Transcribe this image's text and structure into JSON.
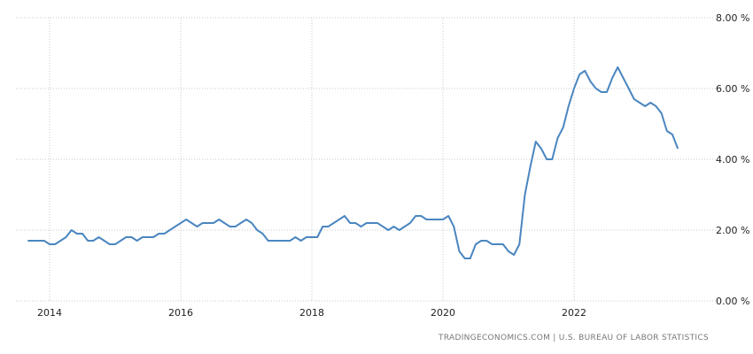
{
  "chart_data": {
    "type": "line",
    "title": "",
    "xlabel": "",
    "ylabel": "",
    "ylim": [
      0,
      8
    ],
    "y_ticks": [
      "0.00 %",
      "2.00 %",
      "4.00 %",
      "6.00 %",
      "8.00 %"
    ],
    "y_tick_values": [
      0,
      2,
      4,
      6,
      8
    ],
    "x_ticks": [
      "2014",
      "2016",
      "2018",
      "2020",
      "2022"
    ],
    "x_start": "2013-09",
    "x_frequency": "monthly",
    "grid": true,
    "line_color": "#4a86c0",
    "series": [
      {
        "values": [
          1.7,
          1.7,
          1.7,
          1.7,
          1.6,
          1.6,
          1.7,
          1.8,
          2.0,
          1.9,
          1.9,
          1.7,
          1.7,
          1.8,
          1.7,
          1.6,
          1.6,
          1.7,
          1.8,
          1.8,
          1.7,
          1.8,
          1.8,
          1.8,
          1.9,
          1.9,
          2.0,
          2.1,
          2.2,
          2.3,
          2.2,
          2.1,
          2.2,
          2.2,
          2.2,
          2.3,
          2.2,
          2.1,
          2.1,
          2.2,
          2.3,
          2.2,
          2.0,
          1.9,
          1.7,
          1.7,
          1.7,
          1.7,
          1.7,
          1.8,
          1.7,
          1.8,
          1.8,
          1.8,
          2.1,
          2.1,
          2.2,
          2.3,
          2.4,
          2.2,
          2.2,
          2.1,
          2.2,
          2.2,
          2.2,
          2.1,
          2.0,
          2.1,
          2.0,
          2.1,
          2.2,
          2.4,
          2.4,
          2.3,
          2.3,
          2.3,
          2.3,
          2.4,
          2.1,
          1.4,
          1.2,
          1.2,
          1.6,
          1.7,
          1.7,
          1.6,
          1.6,
          1.6,
          1.4,
          1.3,
          1.6,
          3.0,
          3.8,
          4.5,
          4.3,
          4.0,
          4.0,
          4.6,
          4.9,
          5.5,
          6.0,
          6.4,
          6.5,
          6.2,
          6.0,
          5.9,
          5.9,
          6.3,
          6.6,
          6.3,
          6.0,
          5.7,
          5.6,
          5.5,
          5.6,
          5.5,
          5.3,
          4.8,
          4.7,
          4.3
        ]
      }
    ]
  },
  "source": "TRADINGECONOMICS.COM  |  U.S. BUREAU OF LABOR STATISTICS"
}
